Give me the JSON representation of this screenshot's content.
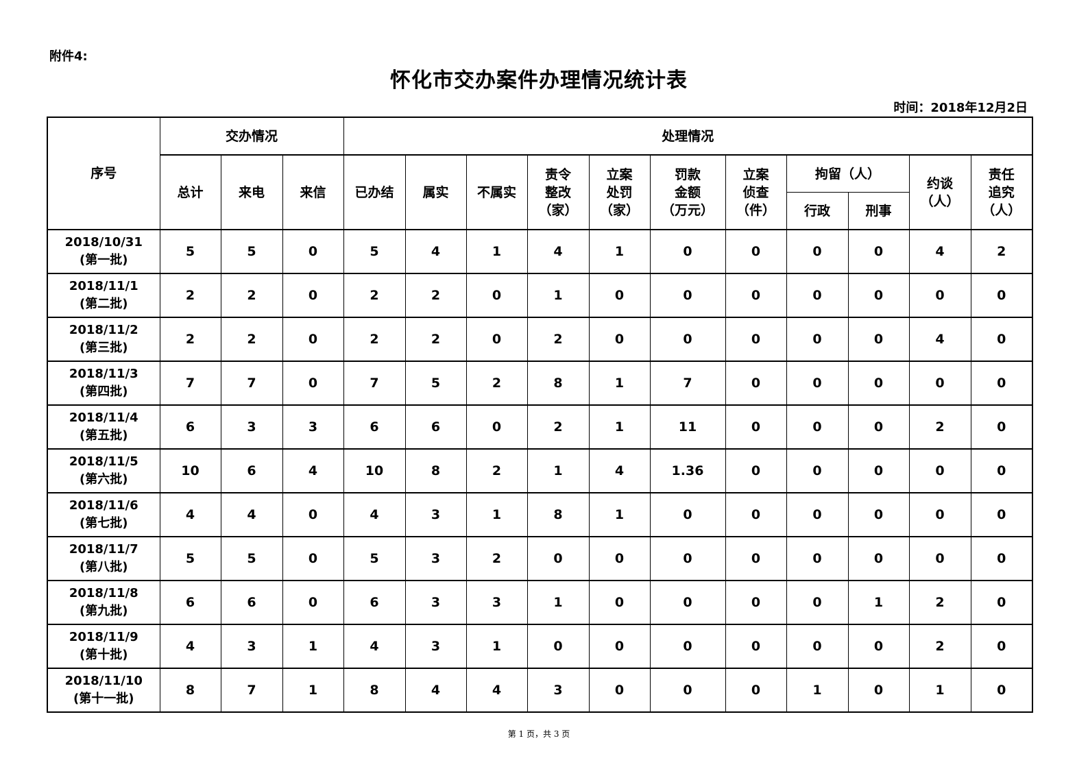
{
  "attachment_label": "附件4:",
  "title": "怀化市交办案件办理情况统计表",
  "date_label": "时间：2018年12月2日",
  "headers": {
    "seq": "序号",
    "assigned_group": "交办情况",
    "handled_group": "处理情况",
    "total": "总计",
    "phone": "来电",
    "letter": "来信",
    "completed": "已办结",
    "verified": "属实",
    "not_verified": "不属实",
    "rectify": [
      "责令",
      "整改",
      "（家）"
    ],
    "penalty_case": [
      "立案",
      "处罚",
      "（家）"
    ],
    "fine": [
      "罚款",
      "金额",
      "（万元）"
    ],
    "investigation": [
      "立案",
      "侦查",
      "（件）"
    ],
    "detention_group": "拘留（人）",
    "admin": "行政",
    "criminal": "刑事",
    "interview": [
      "约谈",
      "（人）"
    ],
    "accountability": [
      "责任",
      "追究",
      "（人）"
    ]
  },
  "rows": [
    {
      "date": "2018/10/31",
      "batch": "(第一批)",
      "values": [
        "5",
        "5",
        "0",
        "5",
        "4",
        "1",
        "4",
        "1",
        "0",
        "0",
        "0",
        "0",
        "4",
        "2"
      ]
    },
    {
      "date": "2018/11/1",
      "batch": "(第二批)",
      "values": [
        "2",
        "2",
        "0",
        "2",
        "2",
        "0",
        "1",
        "0",
        "0",
        "0",
        "0",
        "0",
        "0",
        "0"
      ]
    },
    {
      "date": "2018/11/2",
      "batch": "(第三批)",
      "values": [
        "2",
        "2",
        "0",
        "2",
        "2",
        "0",
        "2",
        "0",
        "0",
        "0",
        "0",
        "0",
        "4",
        "0"
      ]
    },
    {
      "date": "2018/11/3",
      "batch": "(第四批)",
      "values": [
        "7",
        "7",
        "0",
        "7",
        "5",
        "2",
        "8",
        "1",
        "7",
        "0",
        "0",
        "0",
        "0",
        "0"
      ]
    },
    {
      "date": "2018/11/4",
      "batch": "(第五批)",
      "values": [
        "6",
        "3",
        "3",
        "6",
        "6",
        "0",
        "2",
        "1",
        "11",
        "0",
        "0",
        "0",
        "2",
        "0"
      ]
    },
    {
      "date": "2018/11/5",
      "batch": "(第六批)",
      "values": [
        "10",
        "6",
        "4",
        "10",
        "8",
        "2",
        "1",
        "4",
        "1.36",
        "0",
        "0",
        "0",
        "0",
        "0"
      ]
    },
    {
      "date": "2018/11/6",
      "batch": "(第七批)",
      "values": [
        "4",
        "4",
        "0",
        "4",
        "3",
        "1",
        "8",
        "1",
        "0",
        "0",
        "0",
        "0",
        "0",
        "0"
      ]
    },
    {
      "date": "2018/11/7",
      "batch": "(第八批)",
      "values": [
        "5",
        "5",
        "0",
        "5",
        "3",
        "2",
        "0",
        "0",
        "0",
        "0",
        "0",
        "0",
        "0",
        "0"
      ]
    },
    {
      "date": "2018/11/8",
      "batch": "(第九批)",
      "values": [
        "6",
        "6",
        "0",
        "6",
        "3",
        "3",
        "1",
        "0",
        "0",
        "0",
        "0",
        "1",
        "2",
        "0"
      ]
    },
    {
      "date": "2018/11/9",
      "batch": "(第十批)",
      "values": [
        "4",
        "3",
        "1",
        "4",
        "3",
        "1",
        "0",
        "0",
        "0",
        "0",
        "0",
        "0",
        "2",
        "0"
      ]
    },
    {
      "date": "2018/11/10",
      "batch": "(第十一批)",
      "values": [
        "8",
        "7",
        "1",
        "8",
        "4",
        "4",
        "3",
        "0",
        "0",
        "0",
        "1",
        "0",
        "1",
        "0"
      ]
    }
  ],
  "footer": "第 1 页，共 3 页"
}
